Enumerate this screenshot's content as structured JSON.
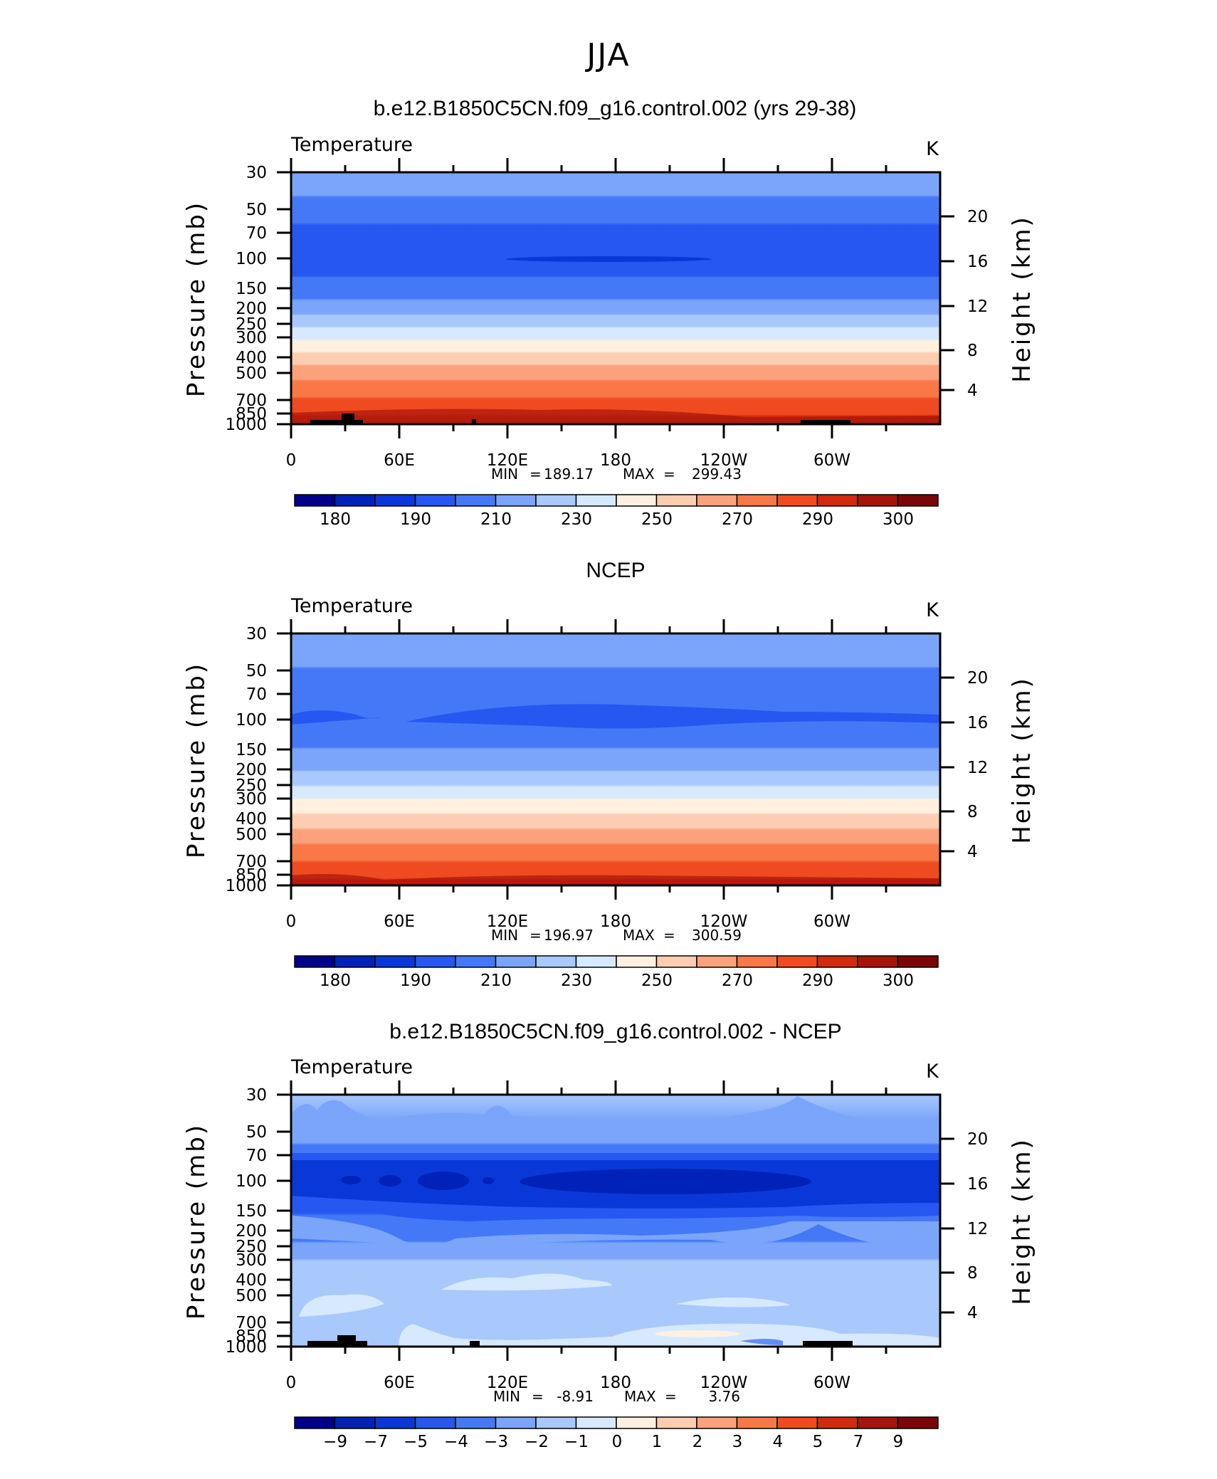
{
  "figure_title": "JJA",
  "chart_data": [
    {
      "type": "heatmap",
      "title": "b.e12.B1850C5CN.f09_g16.control.002 (yrs 29-38)",
      "variable_label": "Temperature",
      "units": "K",
      "ylabel": "Pressure (mb)",
      "ylabel_right": "Height (km)",
      "x_ticks": [
        "0",
        "60E",
        "120E",
        "180",
        "120W",
        "60W"
      ],
      "y_ticks": [
        30,
        50,
        70,
        100,
        150,
        200,
        250,
        300,
        400,
        500,
        700,
        850,
        1000
      ],
      "y_ticks_right": [
        20,
        16,
        12,
        8,
        4
      ],
      "min_label": "MIN",
      "min_value": "189.17",
      "max_label": "MAX",
      "max_value": "299.43",
      "colorbar_labels": [
        "180",
        "190",
        "210",
        "230",
        "250",
        "270",
        "290",
        "300"
      ],
      "colorbar_colors": [
        "#00008b",
        "#0022b8",
        "#0a38d8",
        "#2657f0",
        "#4478f6",
        "#7aa5fa",
        "#a9c8fc",
        "#d6e9fe",
        "#fff0e0",
        "#fccdb0",
        "#fba27c",
        "#f87848",
        "#f04a20",
        "#d22a0c",
        "#a8140a",
        "#7a0609"
      ]
    },
    {
      "type": "heatmap",
      "title": "NCEP",
      "variable_label": "Temperature",
      "units": "K",
      "ylabel": "Pressure (mb)",
      "ylabel_right": "Height (km)",
      "x_ticks": [
        "0",
        "60E",
        "120E",
        "180",
        "120W",
        "60W"
      ],
      "y_ticks": [
        30,
        50,
        70,
        100,
        150,
        200,
        250,
        300,
        400,
        500,
        700,
        850,
        1000
      ],
      "y_ticks_right": [
        20,
        16,
        12,
        8,
        4
      ],
      "min_label": "MIN",
      "min_value": "196.97",
      "max_label": "MAX",
      "max_value": "300.59",
      "colorbar_labels": [
        "180",
        "190",
        "210",
        "230",
        "250",
        "270",
        "290",
        "300"
      ],
      "colorbar_colors": [
        "#00008b",
        "#0022b8",
        "#0a38d8",
        "#2657f0",
        "#4478f6",
        "#7aa5fa",
        "#a9c8fc",
        "#d6e9fe",
        "#fff0e0",
        "#fccdb0",
        "#fba27c",
        "#f87848",
        "#f04a20",
        "#d22a0c",
        "#a8140a",
        "#7a0609"
      ]
    },
    {
      "type": "heatmap",
      "title": "b.e12.B1850C5CN.f09_g16.control.002 - NCEP",
      "variable_label": "Temperature",
      "units": "K",
      "ylabel": "Pressure (mb)",
      "ylabel_right": "Height (km)",
      "x_ticks": [
        "0",
        "60E",
        "120E",
        "180",
        "120W",
        "60W"
      ],
      "y_ticks": [
        30,
        50,
        70,
        100,
        150,
        200,
        250,
        300,
        400,
        500,
        700,
        850,
        1000
      ],
      "y_ticks_right": [
        20,
        16,
        12,
        8,
        4
      ],
      "min_label": "MIN",
      "min_value": "-8.91",
      "max_label": "MAX",
      "max_value": "3.76",
      "colorbar_labels": [
        "−9",
        "−7",
        "−5",
        "−4",
        "−3",
        "−2",
        "−1",
        "0",
        "1",
        "2",
        "3",
        "4",
        "5",
        "7",
        "9"
      ],
      "colorbar_colors": [
        "#00008b",
        "#0022b8",
        "#0a38d8",
        "#2657f0",
        "#4478f6",
        "#7aa5fa",
        "#a9c8fc",
        "#d6e9fe",
        "#fff0e0",
        "#fccdb0",
        "#fba27c",
        "#f87848",
        "#f04a20",
        "#d22a0c",
        "#a8140a",
        "#7a0609"
      ]
    }
  ]
}
